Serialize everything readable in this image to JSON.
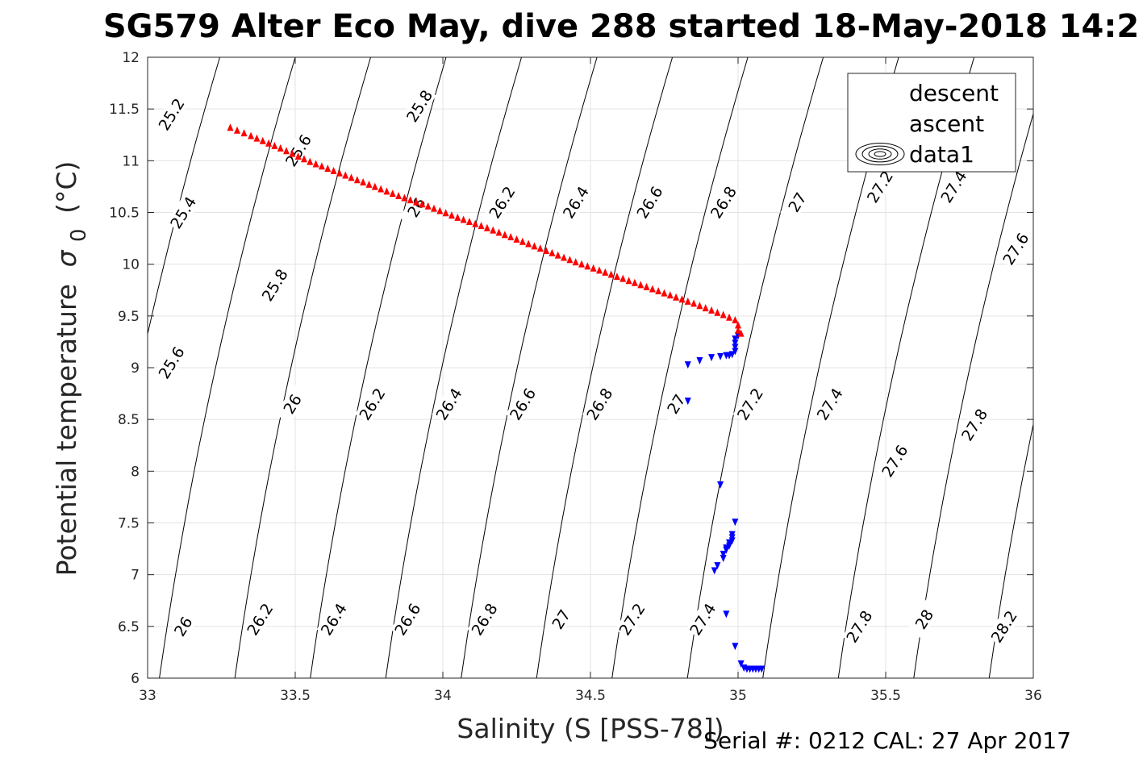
{
  "chart_data": {
    "type": "scatter",
    "title": "SG579 Alter Eco May, dive 288 started 18-May-2018 14:2",
    "xlabel": "Salinity (S [PSS-78])",
    "ylabel": "Potential temperature",
    "ylabel_symbol": "σ",
    "ylabel_subscript": "0",
    "ylabel_unit": "(°C)",
    "xlim": [
      33,
      36
    ],
    "ylim": [
      6,
      12
    ],
    "xticks": [
      33,
      33.5,
      34,
      34.5,
      35,
      35.5,
      36
    ],
    "yticks": [
      6,
      6.5,
      7,
      7.5,
      8,
      8.5,
      9,
      9.5,
      10,
      10.5,
      11,
      11.5,
      12
    ],
    "grid": true,
    "legend_position": "top-right",
    "footer_text": "Serial #: 0212  CAL: 27 Apr 2017",
    "colors": {
      "descent": "#0000ff",
      "ascent": "#ff0000",
      "contour": "#000000",
      "grid": "#e3e3e3"
    },
    "series": [
      {
        "name": "descent",
        "marker": "triangle-down",
        "points": [
          [
            34.83,
            9.03
          ],
          [
            34.83,
            8.68
          ],
          [
            34.87,
            9.07
          ],
          [
            34.91,
            9.1
          ],
          [
            34.94,
            9.11
          ],
          [
            34.96,
            9.12
          ],
          [
            34.97,
            9.12
          ],
          [
            34.98,
            9.13
          ],
          [
            34.99,
            9.16
          ],
          [
            34.99,
            9.2
          ],
          [
            34.99,
            9.24
          ],
          [
            34.99,
            9.28
          ],
          [
            35.0,
            9.31
          ],
          [
            34.94,
            7.87
          ],
          [
            34.99,
            7.51
          ],
          [
            34.98,
            7.39
          ],
          [
            34.98,
            7.36
          ],
          [
            34.98,
            7.33
          ],
          [
            34.97,
            7.31
          ],
          [
            34.97,
            7.28
          ],
          [
            34.96,
            7.26
          ],
          [
            34.96,
            7.24
          ],
          [
            34.95,
            7.2
          ],
          [
            34.95,
            7.16
          ],
          [
            34.93,
            7.09
          ],
          [
            34.92,
            7.04
          ],
          [
            34.96,
            6.62
          ],
          [
            34.99,
            6.31
          ],
          [
            35.01,
            6.14
          ],
          [
            35.02,
            6.1
          ],
          [
            35.03,
            6.09
          ],
          [
            35.04,
            6.09
          ],
          [
            35.05,
            6.09
          ],
          [
            35.06,
            6.09
          ],
          [
            35.07,
            6.09
          ],
          [
            35.08,
            6.09
          ]
        ]
      },
      {
        "name": "ascent",
        "marker": "triangle-up",
        "points": [
          [
            33.28,
            11.32
          ],
          [
            33.35,
            11.24
          ],
          [
            33.45,
            11.12
          ],
          [
            33.55,
            10.99
          ],
          [
            33.65,
            10.88
          ],
          [
            33.75,
            10.77
          ],
          [
            33.85,
            10.66
          ],
          [
            33.95,
            10.56
          ],
          [
            34.05,
            10.45
          ],
          [
            34.15,
            10.35
          ],
          [
            34.25,
            10.24
          ],
          [
            34.35,
            10.13
          ],
          [
            34.45,
            10.02
          ],
          [
            34.55,
            9.92
          ],
          [
            34.65,
            9.82
          ],
          [
            34.75,
            9.72
          ],
          [
            34.85,
            9.62
          ],
          [
            34.95,
            9.51
          ],
          [
            34.99,
            9.46
          ],
          [
            35.0,
            9.41
          ],
          [
            35.0,
            9.36
          ],
          [
            35.01,
            9.33
          ]
        ]
      },
      {
        "name": "data1",
        "marker": "contour"
      }
    ],
    "contours": [
      {
        "value": 25.2,
        "s0": 32.675,
        "label_t": 11.35
      },
      {
        "value": 25.4,
        "s0": 32.815,
        "label_t": 10.5
      },
      {
        "value": 25.6,
        "s0": 32.955,
        "label_t": 9.1
      },
      {
        "value": 25.8,
        "s0": 33.095,
        "label_t": 9.5
      },
      {
        "value": 26,
        "s0": 33.235,
        "label_t": 8.85
      },
      {
        "value": 26.2,
        "s0": 33.375,
        "label_t": 8.85
      },
      {
        "value": 26.4,
        "s0": 33.515,
        "label_t": 8.85
      },
      {
        "value": 26.6,
        "s0": 33.655,
        "label_t": 8.85
      },
      {
        "value": 26.8,
        "s0": 33.795,
        "label_t": 8.85
      },
      {
        "value": 27,
        "s0": 33.935,
        "label_t": 8.85
      },
      {
        "value": 27.2,
        "s0": 34.075,
        "label_t": 8.85
      },
      {
        "value": 27.4,
        "s0": 34.215,
        "label_t": 8.85
      },
      {
        "value": 27.6,
        "s0": 34.355,
        "label_t": 8.35
      },
      {
        "value": 27.8,
        "s0": 34.495,
        "label_t": 8.55
      },
      {
        "value": 28,
        "s0": 34.635,
        "label_t": 6.55
      },
      {
        "value": 28.2,
        "s0": 34.775,
        "label_t": 6.5
      }
    ],
    "contour_slope": 0.0707,
    "upper_labels": [
      {
        "value": "25.2",
        "s": 33.08,
        "t": 11.45
      },
      {
        "value": "25.8",
        "s": 33.92,
        "t": 11.53
      },
      {
        "value": "25.6",
        "s": 33.51,
        "t": 11.1
      },
      {
        "value": "26",
        "s": 33.91,
        "t": 10.55
      },
      {
        "value": "26.2",
        "s": 34.2,
        "t": 10.6
      },
      {
        "value": "26.4",
        "s": 34.45,
        "t": 10.6
      },
      {
        "value": "26.6",
        "s": 34.7,
        "t": 10.6
      },
      {
        "value": "26.8",
        "s": 34.95,
        "t": 10.6
      },
      {
        "value": "27",
        "s": 35.2,
        "t": 10.6
      },
      {
        "value": "27.2",
        "s": 35.48,
        "t": 10.75
      },
      {
        "value": "27.4",
        "s": 35.73,
        "t": 10.75
      },
      {
        "value": "27.6",
        "s": 35.94,
        "t": 10.15
      },
      {
        "value": "25.4",
        "s": 33.12,
        "t": 10.5
      },
      {
        "value": "25.8",
        "s": 33.43,
        "t": 9.8
      },
      {
        "value": "25.6",
        "s": 33.08,
        "t": 9.05
      }
    ],
    "middle_labels": [
      {
        "value": "26",
        "s": 33.49,
        "t": 8.65
      },
      {
        "value": "26.2",
        "s": 33.76,
        "t": 8.65
      },
      {
        "value": "26.4",
        "s": 34.02,
        "t": 8.65
      },
      {
        "value": "26.6",
        "s": 34.27,
        "t": 8.65
      },
      {
        "value": "26.8",
        "s": 34.53,
        "t": 8.65
      },
      {
        "value": "27",
        "s": 34.79,
        "t": 8.65
      },
      {
        "value": "27.2",
        "s": 35.04,
        "t": 8.65
      },
      {
        "value": "27.4",
        "s": 35.31,
        "t": 8.65
      },
      {
        "value": "27.6",
        "s": 35.53,
        "t": 8.1
      },
      {
        "value": "27.8",
        "s": 35.8,
        "t": 8.45
      }
    ],
    "lower_labels": [
      {
        "value": "26",
        "s": 33.12,
        "t": 6.5
      },
      {
        "value": "26.2",
        "s": 33.38,
        "t": 6.57
      },
      {
        "value": "26.4",
        "s": 33.63,
        "t": 6.57
      },
      {
        "value": "26.6",
        "s": 33.88,
        "t": 6.57
      },
      {
        "value": "26.8",
        "s": 34.14,
        "t": 6.57
      },
      {
        "value": "27",
        "s": 34.4,
        "t": 6.57
      },
      {
        "value": "27.2",
        "s": 34.64,
        "t": 6.57
      },
      {
        "value": "27.4",
        "s": 34.88,
        "t": 6.57
      },
      {
        "value": "27.8",
        "s": 35.41,
        "t": 6.5
      },
      {
        "value": "28",
        "s": 35.63,
        "t": 6.57
      },
      {
        "value": "28.2",
        "s": 35.9,
        "t": 6.5
      }
    ]
  }
}
